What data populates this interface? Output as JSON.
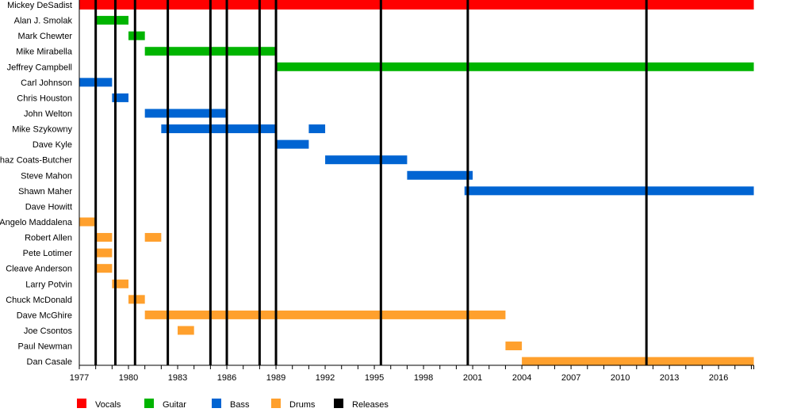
{
  "chart_data": {
    "type": "bar",
    "subtype": "timeline",
    "xlim": [
      1977,
      2018.15
    ],
    "x_ticks": [
      1977,
      1980,
      1983,
      1986,
      1989,
      1992,
      1995,
      1998,
      2001,
      2004,
      2007,
      2010,
      2013,
      2016
    ],
    "x_minor_tick_step": 1,
    "grid": false,
    "legend_position": "bottom",
    "roles": [
      {
        "name": "Vocals",
        "color": "#ff0000"
      },
      {
        "name": "Guitar",
        "color": "#00b400"
      },
      {
        "name": "Bass",
        "color": "#0064d2"
      },
      {
        "name": "Drums",
        "color": "#ffa02d"
      },
      {
        "name": "Releases",
        "color": "#000000"
      }
    ],
    "releases": [
      1978,
      1979.2,
      1980.4,
      1982.4,
      1985,
      1986,
      1988,
      1989,
      1995.4,
      2000.7,
      2011.6
    ],
    "members": [
      {
        "name": "Mickey DeSadist",
        "role": "Vocals",
        "periods": [
          [
            1977,
            2018.15
          ]
        ]
      },
      {
        "name": "Alan J. Smolak",
        "role": "Guitar",
        "periods": [
          [
            1978,
            1980
          ]
        ]
      },
      {
        "name": "Mark Chewter",
        "role": "Guitar",
        "periods": [
          [
            1980,
            1981
          ]
        ]
      },
      {
        "name": "Mike Mirabella",
        "role": "Guitar",
        "periods": [
          [
            1981,
            1989
          ]
        ]
      },
      {
        "name": "Jeffrey Campbell",
        "role": "Guitar",
        "periods": [
          [
            1989,
            2018.15
          ]
        ]
      },
      {
        "name": "Carl Johnson",
        "role": "Bass",
        "periods": [
          [
            1977,
            1979
          ]
        ]
      },
      {
        "name": "Chris Houston",
        "role": "Bass",
        "periods": [
          [
            1979,
            1980
          ]
        ]
      },
      {
        "name": "John Welton",
        "role": "Bass",
        "periods": [
          [
            1981,
            1986
          ]
        ]
      },
      {
        "name": "Mike Szykowny",
        "role": "Bass",
        "periods": [
          [
            1982,
            1989
          ],
          [
            1991,
            1992
          ]
        ]
      },
      {
        "name": "Dave Kyle",
        "role": "Bass",
        "periods": [
          [
            1989,
            1991
          ]
        ]
      },
      {
        "name": "Chaz Coats-Butcher",
        "role": "Bass",
        "periods": [
          [
            1992,
            1997
          ]
        ]
      },
      {
        "name": "Steve Mahon",
        "role": "Bass",
        "periods": [
          [
            1997,
            2001
          ]
        ]
      },
      {
        "name": "Shawn Maher",
        "role": "Bass",
        "periods": [
          [
            2000.5,
            2018.15
          ]
        ]
      },
      {
        "name": "Dave Howitt",
        "role": "Bass",
        "periods": []
      },
      {
        "name": "Angelo Maddalena",
        "role": "Drums",
        "periods": [
          [
            1977,
            1978
          ]
        ]
      },
      {
        "name": "Robert Allen",
        "role": "Drums",
        "periods": [
          [
            1978,
            1979
          ],
          [
            1981,
            1982
          ]
        ]
      },
      {
        "name": "Pete Lotimer",
        "role": "Drums",
        "periods": [
          [
            1978,
            1979
          ]
        ]
      },
      {
        "name": "Cleave Anderson",
        "role": "Drums",
        "periods": [
          [
            1978,
            1979
          ]
        ]
      },
      {
        "name": "Larry Potvin",
        "role": "Drums",
        "periods": [
          [
            1979,
            1980
          ]
        ]
      },
      {
        "name": "Chuck McDonald",
        "role": "Drums",
        "periods": [
          [
            1980,
            1981
          ]
        ]
      },
      {
        "name": "Dave McGhire",
        "role": "Drums",
        "periods": [
          [
            1981,
            2003
          ]
        ]
      },
      {
        "name": "Joe Csontos",
        "role": "Drums",
        "periods": [
          [
            1983,
            1984
          ]
        ]
      },
      {
        "name": "Paul Newman",
        "role": "Drums",
        "periods": [
          [
            2003,
            2004
          ]
        ]
      },
      {
        "name": "Dan Casale",
        "role": "Drums",
        "periods": [
          [
            2004,
            2018.15
          ]
        ]
      }
    ]
  }
}
